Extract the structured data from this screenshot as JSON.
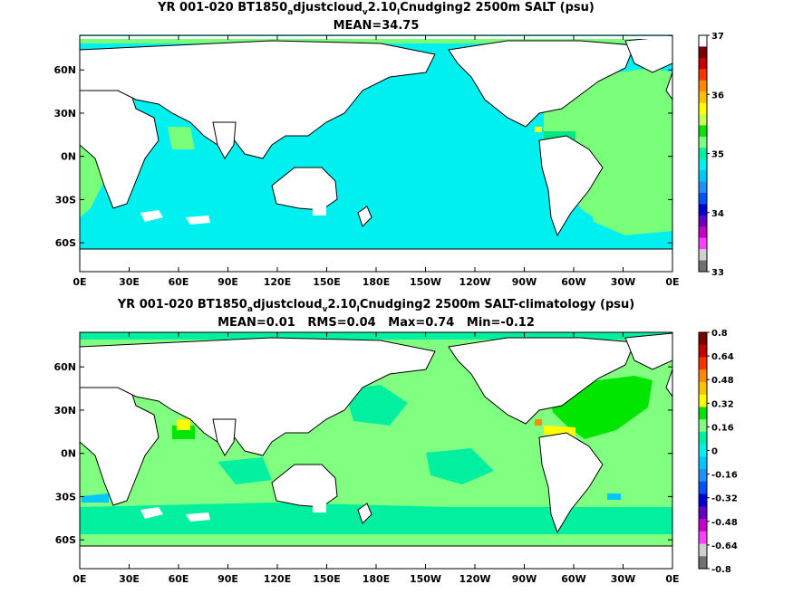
{
  "panels": [
    {
      "id": "salt",
      "title": {
        "prefix": "YR 001-020 BT1850",
        "sub1": "a",
        "mid1": "djustcloud",
        "sub2": "v",
        "mid2": "2.10",
        "sub3": "I",
        "suffix": "Cnudging2 2500m SALT (psu)"
      },
      "stats": "MEAN=34.75",
      "colorbar": {
        "labels": [
          "37",
          "36",
          "35",
          "34",
          "33"
        ],
        "colors": [
          "#ffffff",
          "#7a0000",
          "#c80000",
          "#ff3000",
          "#ff8a00",
          "#ffc000",
          "#ffff00",
          "#c8ff50",
          "#00e600",
          "#80ff80",
          "#00f0a0",
          "#00f0f0",
          "#00c8ff",
          "#1e90ff",
          "#0050ff",
          "#0000d0",
          "#6400c8",
          "#c800c8",
          "#ff40ff",
          "#d0d0d0",
          "#707070"
        ]
      },
      "field_colors": {
        "base": "#00f0f0",
        "secondary": "#7aff7a",
        "accent": "#00e680",
        "hot": "#ffff00"
      }
    },
    {
      "id": "salt-diff",
      "title": {
        "prefix": "YR 001-020 BT1850",
        "sub1": "a",
        "mid1": "djustcloud",
        "sub2": "v",
        "mid2": "2.10",
        "sub3": "I",
        "suffix": "Cnudging2 2500m SALT-climatology (psu)"
      },
      "stats": "MEAN=0.01   RMS=0.04   Max=0.74   Min=-0.12",
      "colorbar": {
        "labels": [
          "0.8",
          "0.64",
          "0.48",
          "0.32",
          "0.16",
          "0",
          "-0.16",
          "-0.32",
          "-0.48",
          "-0.64",
          "-0.8"
        ],
        "colors": [
          "#7a0000",
          "#c80000",
          "#ff3000",
          "#ff8a00",
          "#ffc000",
          "#ffff00",
          "#00e600",
          "#80ff80",
          "#00f0a0",
          "#00f0f0",
          "#00c8ff",
          "#1e90ff",
          "#0050ff",
          "#0000d0",
          "#6400c8",
          "#c800c8",
          "#ff40ff",
          "#d0d0d0",
          "#707070"
        ]
      },
      "field_colors": {
        "base": "#80ff80",
        "secondary": "#00f0a0",
        "accent": "#00e600",
        "hot": "#ffff00"
      }
    }
  ],
  "axes": {
    "x_ticks": [
      "0E",
      "30E",
      "60E",
      "90E",
      "120E",
      "150E",
      "180E",
      "150W",
      "120W",
      "90W",
      "60W",
      "30W",
      "0E"
    ],
    "y_ticks": [
      "60N",
      "30N",
      "0N",
      "30S",
      "60S"
    ],
    "y_tick_lats": [
      60,
      30,
      0,
      -30,
      -60
    ],
    "lat_range": [
      -80,
      84
    ],
    "lon_range": [
      0,
      360
    ]
  }
}
